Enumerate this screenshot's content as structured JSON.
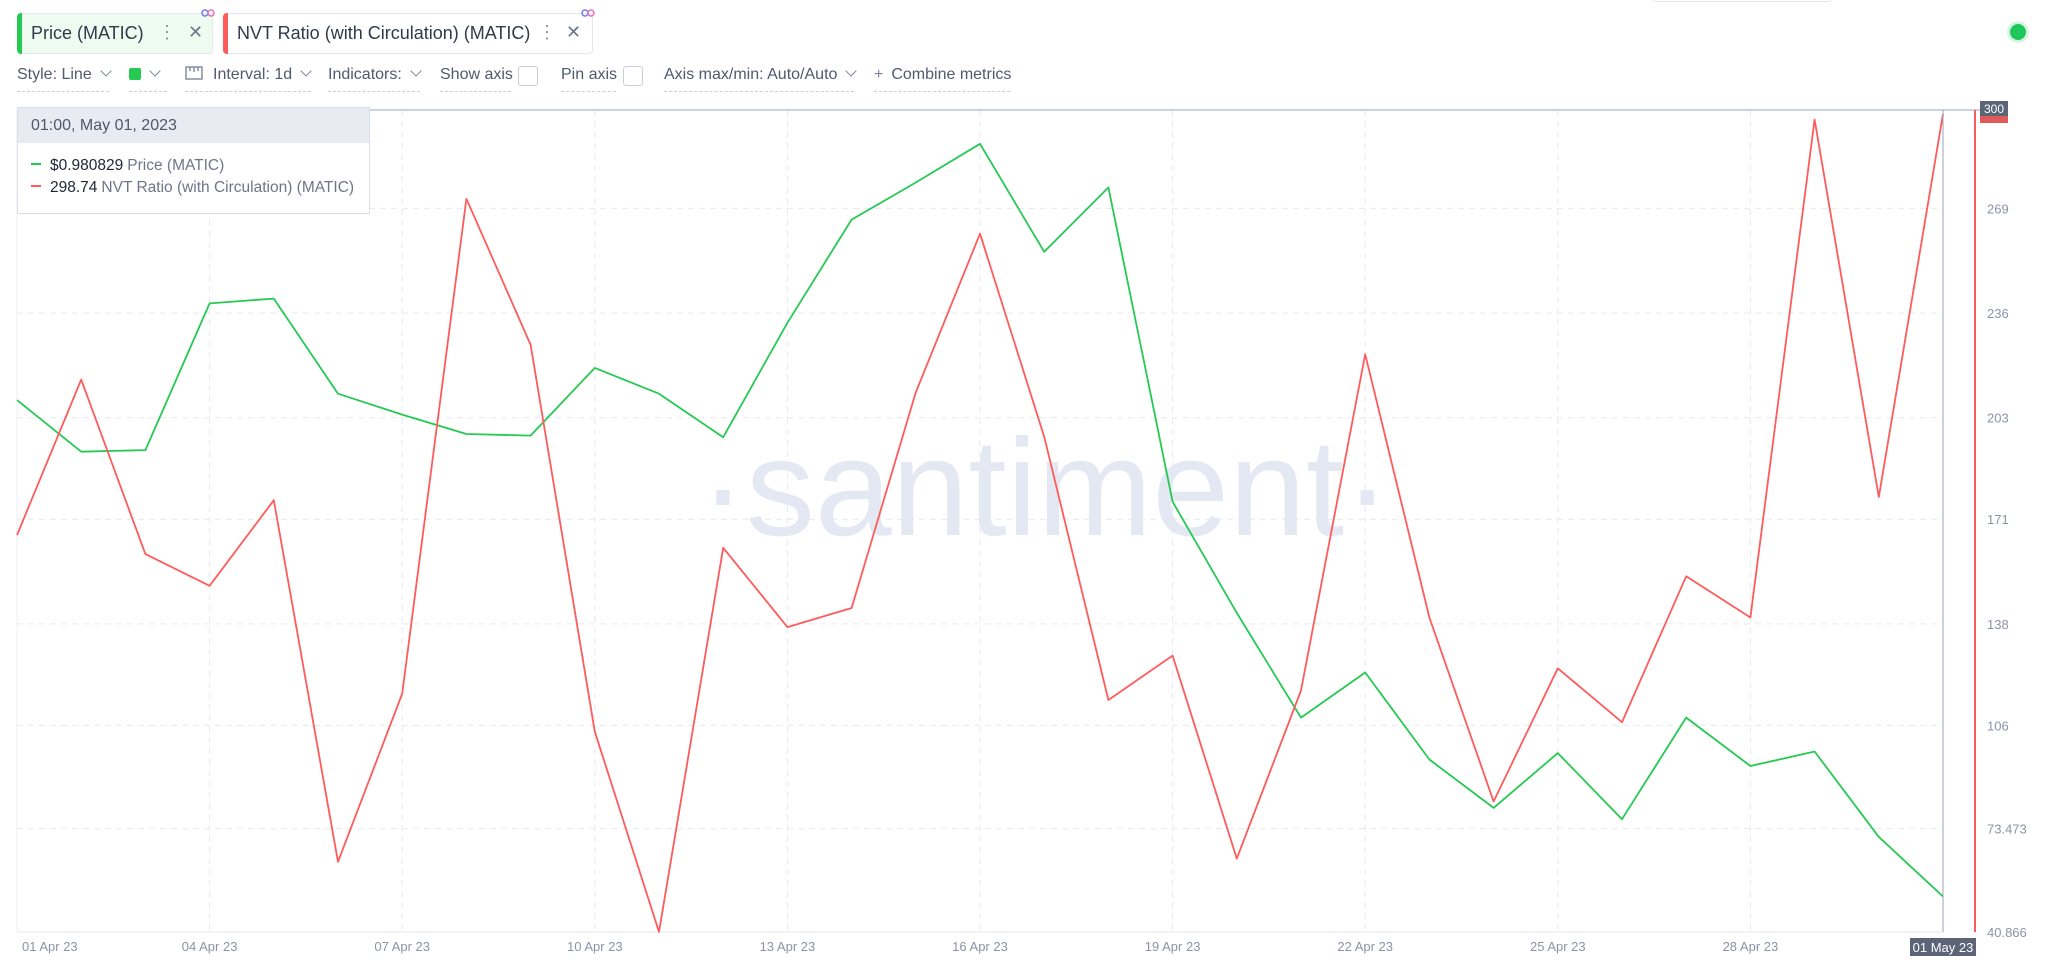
{
  "metric_tabs": [
    {
      "label": "Price (MATIC)",
      "color": "#26c953"
    },
    {
      "label": "NVT Ratio (with Circulation) (MATIC)",
      "color": "#ff5b5b"
    }
  ],
  "toolbar": {
    "style": "Style: Line",
    "interval": "Interval: 1d",
    "indicators": "Indicators:",
    "show_axis": "Show axis",
    "pin_axis": "Pin axis",
    "axis_maxmin": "Axis max/min: Auto/Auto",
    "combine": "Combine metrics"
  },
  "tooltip": {
    "datetime": "01:00, May 01, 2023",
    "rows": [
      {
        "value": "$0.980829",
        "label": "Price (MATIC)"
      },
      {
        "value": "298.74",
        "label": "NVT Ratio (with Circulation) (MATIC)"
      }
    ]
  },
  "watermark": "·santiment·",
  "chart_data": {
    "type": "line",
    "x_ticks": [
      "01 Apr 23",
      "04 Apr 23",
      "07 Apr 23",
      "10 Apr 23",
      "13 Apr 23",
      "16 Apr 23",
      "19 Apr 23",
      "22 Apr 23",
      "25 Apr 23",
      "28 Apr 23",
      "01 May 23"
    ],
    "y_ticks": [
      "300",
      "269",
      "236",
      "203",
      "171",
      "138",
      "106",
      "73.473",
      "40.866"
    ],
    "ylim": [
      40.866,
      300
    ],
    "hover_x_label": "01 May 23",
    "hover_y_label": "300",
    "x": [
      "2023-04-01",
      "2023-04-02",
      "2023-04-03",
      "2023-04-04",
      "2023-04-05",
      "2023-04-06",
      "2023-04-07",
      "2023-04-08",
      "2023-04-09",
      "2023-04-10",
      "2023-04-11",
      "2023-04-12",
      "2023-04-13",
      "2023-04-14",
      "2023-04-15",
      "2023-04-16",
      "2023-04-17",
      "2023-04-18",
      "2023-04-19",
      "2023-04-20",
      "2023-04-21",
      "2023-04-22",
      "2023-04-23",
      "2023-04-24",
      "2023-04-25",
      "2023-04-26",
      "2023-04-27",
      "2023-04-28",
      "2023-04-29",
      "2023-04-30",
      "2023-05-01"
    ],
    "series": [
      {
        "name": "Price (MATIC)",
        "color": "#26c953",
        "values": [
          1.135,
          1.119,
          1.1195,
          1.165,
          1.1665,
          1.137,
          1.1305,
          1.1245,
          1.124,
          1.145,
          1.137,
          1.1235,
          1.159,
          1.191,
          1.2025,
          1.2145,
          1.181,
          1.201,
          1.1035,
          1.069,
          1.0365,
          1.0505,
          1.0235,
          1.0085,
          1.0255,
          1.005,
          1.0365,
          1.0215,
          1.026,
          0.9995,
          0.981
        ]
      },
      {
        "name": "NVT Ratio (with Circulation) (MATIC)",
        "color": "#ff5b5b",
        "values": [
          166,
          215,
          160,
          150,
          177,
          63,
          116,
          272,
          226,
          104,
          40.9,
          162,
          137,
          143,
          211,
          261,
          197,
          114,
          128,
          64,
          117,
          223,
          140,
          82,
          124,
          107,
          153,
          140,
          297,
          178,
          298.74
        ]
      }
    ]
  }
}
